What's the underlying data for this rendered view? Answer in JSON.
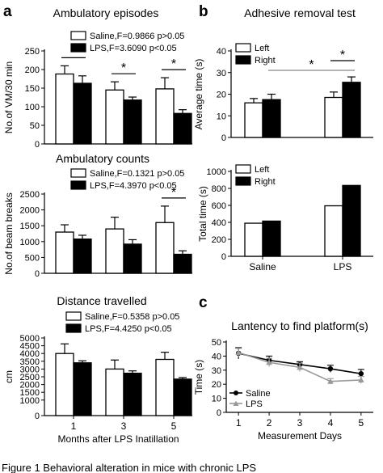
{
  "panel_letters": {
    "a": "a",
    "b": "b",
    "c": "c"
  },
  "caption_fragment": "Figure 1  Behavioral alteration in mice with chronic LPS",
  "chart_data": [
    {
      "id": "amb-episodes",
      "type": "bar",
      "title": "Ambulatory episodes",
      "ylabel": "No.of VM/30 min",
      "xlabel": "",
      "ylim": [
        0,
        250
      ],
      "yticks": [
        0,
        50,
        100,
        150,
        200,
        250
      ],
      "categories": [
        "1",
        "3",
        "5"
      ],
      "show_xticklabels": false,
      "series": [
        {
          "name": "Saline,F=0.9866 p>0.05",
          "color": "#ffffff",
          "values": [
            188,
            145,
            148
          ],
          "errors": [
            22,
            22,
            30
          ]
        },
        {
          "name": "LPS,F=3.6090 p<0.05",
          "color": "#000000",
          "values": [
            163,
            118,
            82
          ],
          "errors": [
            20,
            8,
            10
          ]
        }
      ],
      "significance": [
        {
          "label": "*",
          "from": [
            0,
            0
          ],
          "to": [
            0,
            1
          ]
        },
        {
          "label": "*",
          "from": [
            1,
            0
          ],
          "to": [
            1,
            1
          ]
        },
        {
          "label": "*",
          "from": [
            2,
            0
          ],
          "to": [
            2,
            1
          ]
        }
      ]
    },
    {
      "id": "amb-counts",
      "type": "bar",
      "title": "Ambulatory counts",
      "ylabel": "No.of beam breaks",
      "xlabel": "",
      "ylim": [
        0,
        2500
      ],
      "yticks": [
        0,
        500,
        1000,
        1500,
        2000,
        2500
      ],
      "categories": [
        "1",
        "3",
        "5"
      ],
      "show_xticklabels": false,
      "series": [
        {
          "name": "Saline,F=0.1321 p>0.05",
          "color": "#ffffff",
          "values": [
            1300,
            1400,
            1600
          ],
          "errors": [
            230,
            370,
            520
          ]
        },
        {
          "name": "LPS,F=4.3970 p<0.05",
          "color": "#000000",
          "values": [
            1080,
            920,
            600
          ],
          "errors": [
            120,
            140,
            110
          ]
        }
      ],
      "significance": [
        {
          "label": "*",
          "from": [
            2,
            0
          ],
          "to": [
            2,
            1
          ]
        }
      ]
    },
    {
      "id": "distance",
      "type": "bar",
      "title": "Distance travelled",
      "ylabel": "cm",
      "xlabel": "Months after LPS Inatillation",
      "ylim": [
        0,
        5000
      ],
      "yticks": [
        0,
        1000,
        1500,
        2000,
        2500,
        3000,
        3500,
        4000,
        4500,
        5000
      ],
      "categories": [
        "1",
        "3",
        "5"
      ],
      "show_xticklabels": true,
      "series": [
        {
          "name": "Saline,F=0.5358 p>0.05",
          "color": "#ffffff",
          "values": [
            4000,
            3000,
            3620
          ],
          "errors": [
            620,
            580,
            460
          ]
        },
        {
          "name": "LPS,F=4.4250 p<0.05",
          "color": "#000000",
          "values": [
            3400,
            2730,
            2350
          ],
          "errors": [
            130,
            150,
            100
          ]
        }
      ],
      "significance": []
    },
    {
      "id": "adhesive-avg",
      "type": "bar",
      "title": "Adhesive removal test",
      "ylabel": "Average time (s)",
      "xlabel": "",
      "ylim": [
        0,
        40
      ],
      "yticks": [
        0,
        10,
        20,
        30,
        40
      ],
      "categories": [
        "Saline",
        "LPS"
      ],
      "show_xticklabels": false,
      "series": [
        {
          "name": "Left",
          "color": "#ffffff",
          "values": [
            16,
            18.5
          ],
          "errors": [
            2,
            2.5
          ]
        },
        {
          "name": "Right",
          "color": "#000000",
          "values": [
            17.5,
            25.5
          ],
          "errors": [
            2.5,
            2.5
          ]
        }
      ],
      "significance": [
        {
          "label": "*",
          "from": [
            1,
            0
          ],
          "to": [
            1,
            1
          ],
          "style": "black"
        },
        {
          "label": "*",
          "from": [
            0,
            1
          ],
          "to": [
            1,
            1
          ],
          "style": "gray"
        }
      ]
    },
    {
      "id": "adhesive-total",
      "type": "bar",
      "title": "",
      "ylabel": "Total time (s)",
      "xlabel": "",
      "ylim": [
        0,
        1000
      ],
      "yticks": [
        0,
        200,
        400,
        600,
        800,
        1000
      ],
      "categories": [
        "Saline",
        "LPS"
      ],
      "show_xticklabels": true,
      "series": [
        {
          "name": "Left",
          "color": "#ffffff",
          "values": [
            390,
            595
          ],
          "errors": []
        },
        {
          "name": "Right",
          "color": "#000000",
          "values": [
            415,
            835
          ],
          "errors": []
        }
      ],
      "significance": []
    },
    {
      "id": "latency",
      "type": "line",
      "title": "Lantency to find platform(s)",
      "ylabel": "Time (s)",
      "xlabel": "Measurement Days",
      "x": [
        1,
        2,
        3,
        4,
        5
      ],
      "xlim": [
        0.6,
        5.4
      ],
      "ylim": [
        0,
        50
      ],
      "yticks": [
        0,
        10,
        20,
        30,
        40,
        50
      ],
      "series": [
        {
          "name": "Saline",
          "color": "#000000",
          "values": [
            42,
            37,
            34,
            31,
            27.5
          ],
          "errors": [
            4,
            3,
            2,
            2.5,
            3
          ]
        },
        {
          "name": "LPS",
          "color": "#999999",
          "values": [
            42.5,
            35.5,
            32,
            22,
            23
          ],
          "errors": [
            3,
            3,
            3,
            2,
            2.5
          ]
        }
      ]
    }
  ]
}
